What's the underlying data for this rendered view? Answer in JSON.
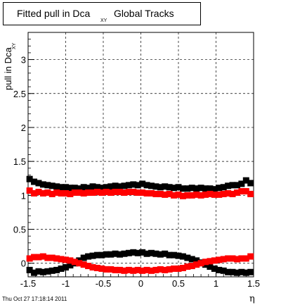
{
  "title": {
    "main": "Fitted pull in Dca",
    "sub": "XY",
    "suffix": "Global Tracks"
  },
  "footer": "Thu Oct 27 17:18:14 2011",
  "chart_data": {
    "type": "scatter",
    "title": "Fitted pull in Dca_XY  Global Tracks",
    "xlabel": "η",
    "ylabel": "pull in Dca",
    "ylabel_sub": "XY",
    "xlim": [
      -1.5,
      1.5
    ],
    "ylim": [
      -0.2,
      3.4
    ],
    "x_ticks": [
      -1.5,
      -1,
      -0.5,
      0,
      0.5,
      1,
      1.5
    ],
    "x_tick_labels": [
      "-1.5",
      "-1",
      "-0.5",
      "0",
      "0.5",
      "1",
      "1.5"
    ],
    "y_ticks": [
      0,
      0.5,
      1,
      1.5,
      2,
      2.5,
      3
    ],
    "y_tick_labels": [
      "0",
      "0.5",
      "1",
      "1.5",
      "2",
      "2.5",
      "3"
    ],
    "grid": true,
    "colors": {
      "black_series": "#000000",
      "red_series": "#ff0000"
    },
    "series": [
      {
        "color": "#000000",
        "marker": "square",
        "x": [
          -1.48,
          -1.42,
          -1.36,
          -1.3,
          -1.24,
          -1.18,
          -1.12,
          -1.06,
          -1.0,
          -0.94,
          -0.88,
          -0.82,
          -0.76,
          -0.7,
          -0.64,
          -0.58,
          -0.52,
          -0.46,
          -0.4,
          -0.34,
          -0.28,
          -0.22,
          -0.16,
          -0.1,
          -0.04,
          0.02,
          0.08,
          0.14,
          0.2,
          0.26,
          0.32,
          0.38,
          0.44,
          0.5,
          0.56,
          0.62,
          0.68,
          0.74,
          0.8,
          0.86,
          0.92,
          0.98,
          1.04,
          1.1,
          1.16,
          1.22,
          1.28,
          1.34,
          1.4,
          1.46
        ],
        "y": [
          1.24,
          1.2,
          1.18,
          1.16,
          1.15,
          1.14,
          1.13,
          1.12,
          1.12,
          1.11,
          1.11,
          1.1,
          1.12,
          1.11,
          1.13,
          1.12,
          1.11,
          1.12,
          1.13,
          1.14,
          1.13,
          1.14,
          1.15,
          1.16,
          1.15,
          1.17,
          1.15,
          1.14,
          1.13,
          1.12,
          1.13,
          1.12,
          1.11,
          1.12,
          1.1,
          1.1,
          1.11,
          1.1,
          1.11,
          1.1,
          1.1,
          1.09,
          1.11,
          1.12,
          1.14,
          1.15,
          1.15,
          1.17,
          1.22,
          1.18
        ]
      },
      {
        "color": "#ff0000",
        "marker": "square",
        "x": [
          -1.48,
          -1.42,
          -1.36,
          -1.3,
          -1.24,
          -1.18,
          -1.12,
          -1.06,
          -1.0,
          -0.94,
          -0.88,
          -0.82,
          -0.76,
          -0.7,
          -0.64,
          -0.58,
          -0.52,
          -0.46,
          -0.4,
          -0.34,
          -0.28,
          -0.22,
          -0.16,
          -0.1,
          -0.04,
          0.02,
          0.08,
          0.14,
          0.2,
          0.26,
          0.32,
          0.38,
          0.44,
          0.5,
          0.56,
          0.62,
          0.68,
          0.74,
          0.8,
          0.86,
          0.92,
          0.98,
          1.04,
          1.1,
          1.16,
          1.22,
          1.28,
          1.34,
          1.4,
          1.46
        ],
        "y": [
          1.07,
          1.03,
          1.05,
          1.03,
          1.04,
          1.02,
          1.04,
          1.03,
          1.03,
          1.02,
          1.04,
          1.04,
          1.03,
          1.04,
          1.04,
          1.05,
          1.04,
          1.05,
          1.04,
          1.05,
          1.05,
          1.04,
          1.05,
          1.05,
          1.04,
          1.04,
          1.03,
          1.03,
          1.02,
          1.02,
          1.01,
          1.02,
          1.0,
          1.01,
          0.99,
          1.0,
          1.0,
          1.01,
          1.0,
          1.01,
          1.02,
          1.01,
          1.01,
          1.02,
          1.03,
          1.02,
          1.04,
          1.06,
          1.06,
          1.02
        ]
      },
      {
        "color": "#000000",
        "marker": "square",
        "x": [
          -1.48,
          -1.42,
          -1.36,
          -1.3,
          -1.24,
          -1.18,
          -1.12,
          -1.06,
          -1.0,
          -0.94,
          -0.88,
          -0.82,
          -0.76,
          -0.7,
          -0.64,
          -0.58,
          -0.52,
          -0.46,
          -0.4,
          -0.34,
          -0.28,
          -0.22,
          -0.16,
          -0.1,
          -0.04,
          0.02,
          0.08,
          0.14,
          0.2,
          0.26,
          0.32,
          0.38,
          0.44,
          0.5,
          0.56,
          0.62,
          0.68,
          0.74,
          0.8,
          0.86,
          0.92,
          0.98,
          1.04,
          1.1,
          1.16,
          1.22,
          1.28,
          1.34,
          1.4,
          1.46
        ],
        "y": [
          -0.1,
          -0.14,
          -0.12,
          -0.13,
          -0.12,
          -0.11,
          -0.1,
          -0.08,
          -0.06,
          -0.03,
          0.0,
          0.04,
          0.08,
          0.1,
          0.11,
          0.12,
          0.12,
          0.13,
          0.13,
          0.14,
          0.13,
          0.14,
          0.15,
          0.16,
          0.15,
          0.16,
          0.14,
          0.15,
          0.14,
          0.13,
          0.14,
          0.12,
          0.12,
          0.11,
          0.1,
          0.08,
          0.06,
          0.04,
          0.01,
          -0.02,
          -0.05,
          -0.08,
          -0.1,
          -0.11,
          -0.13,
          -0.13,
          -0.14,
          -0.13,
          -0.14,
          -0.13
        ]
      },
      {
        "color": "#ff0000",
        "marker": "square",
        "x": [
          -1.48,
          -1.42,
          -1.36,
          -1.3,
          -1.24,
          -1.18,
          -1.12,
          -1.06,
          -1.0,
          -0.94,
          -0.88,
          -0.82,
          -0.76,
          -0.7,
          -0.64,
          -0.58,
          -0.52,
          -0.46,
          -0.4,
          -0.34,
          -0.28,
          -0.22,
          -0.16,
          -0.1,
          -0.04,
          0.02,
          0.08,
          0.14,
          0.2,
          0.26,
          0.32,
          0.38,
          0.44,
          0.5,
          0.56,
          0.62,
          0.68,
          0.74,
          0.8,
          0.86,
          0.92,
          0.98,
          1.04,
          1.1,
          1.16,
          1.22,
          1.28,
          1.34,
          1.4,
          1.46
        ],
        "y": [
          0.07,
          0.09,
          0.09,
          0.1,
          0.08,
          0.08,
          0.07,
          0.06,
          0.05,
          0.04,
          0.02,
          0.0,
          -0.02,
          -0.04,
          -0.06,
          -0.07,
          -0.08,
          -0.09,
          -0.09,
          -0.1,
          -0.1,
          -0.11,
          -0.1,
          -0.11,
          -0.1,
          -0.11,
          -0.1,
          -0.11,
          -0.1,
          -0.09,
          -0.1,
          -0.09,
          -0.08,
          -0.08,
          -0.07,
          -0.05,
          -0.04,
          -0.02,
          0.0,
          0.02,
          0.03,
          0.04,
          0.05,
          0.06,
          0.07,
          0.07,
          0.06,
          0.07,
          0.07,
          0.1
        ]
      }
    ]
  }
}
